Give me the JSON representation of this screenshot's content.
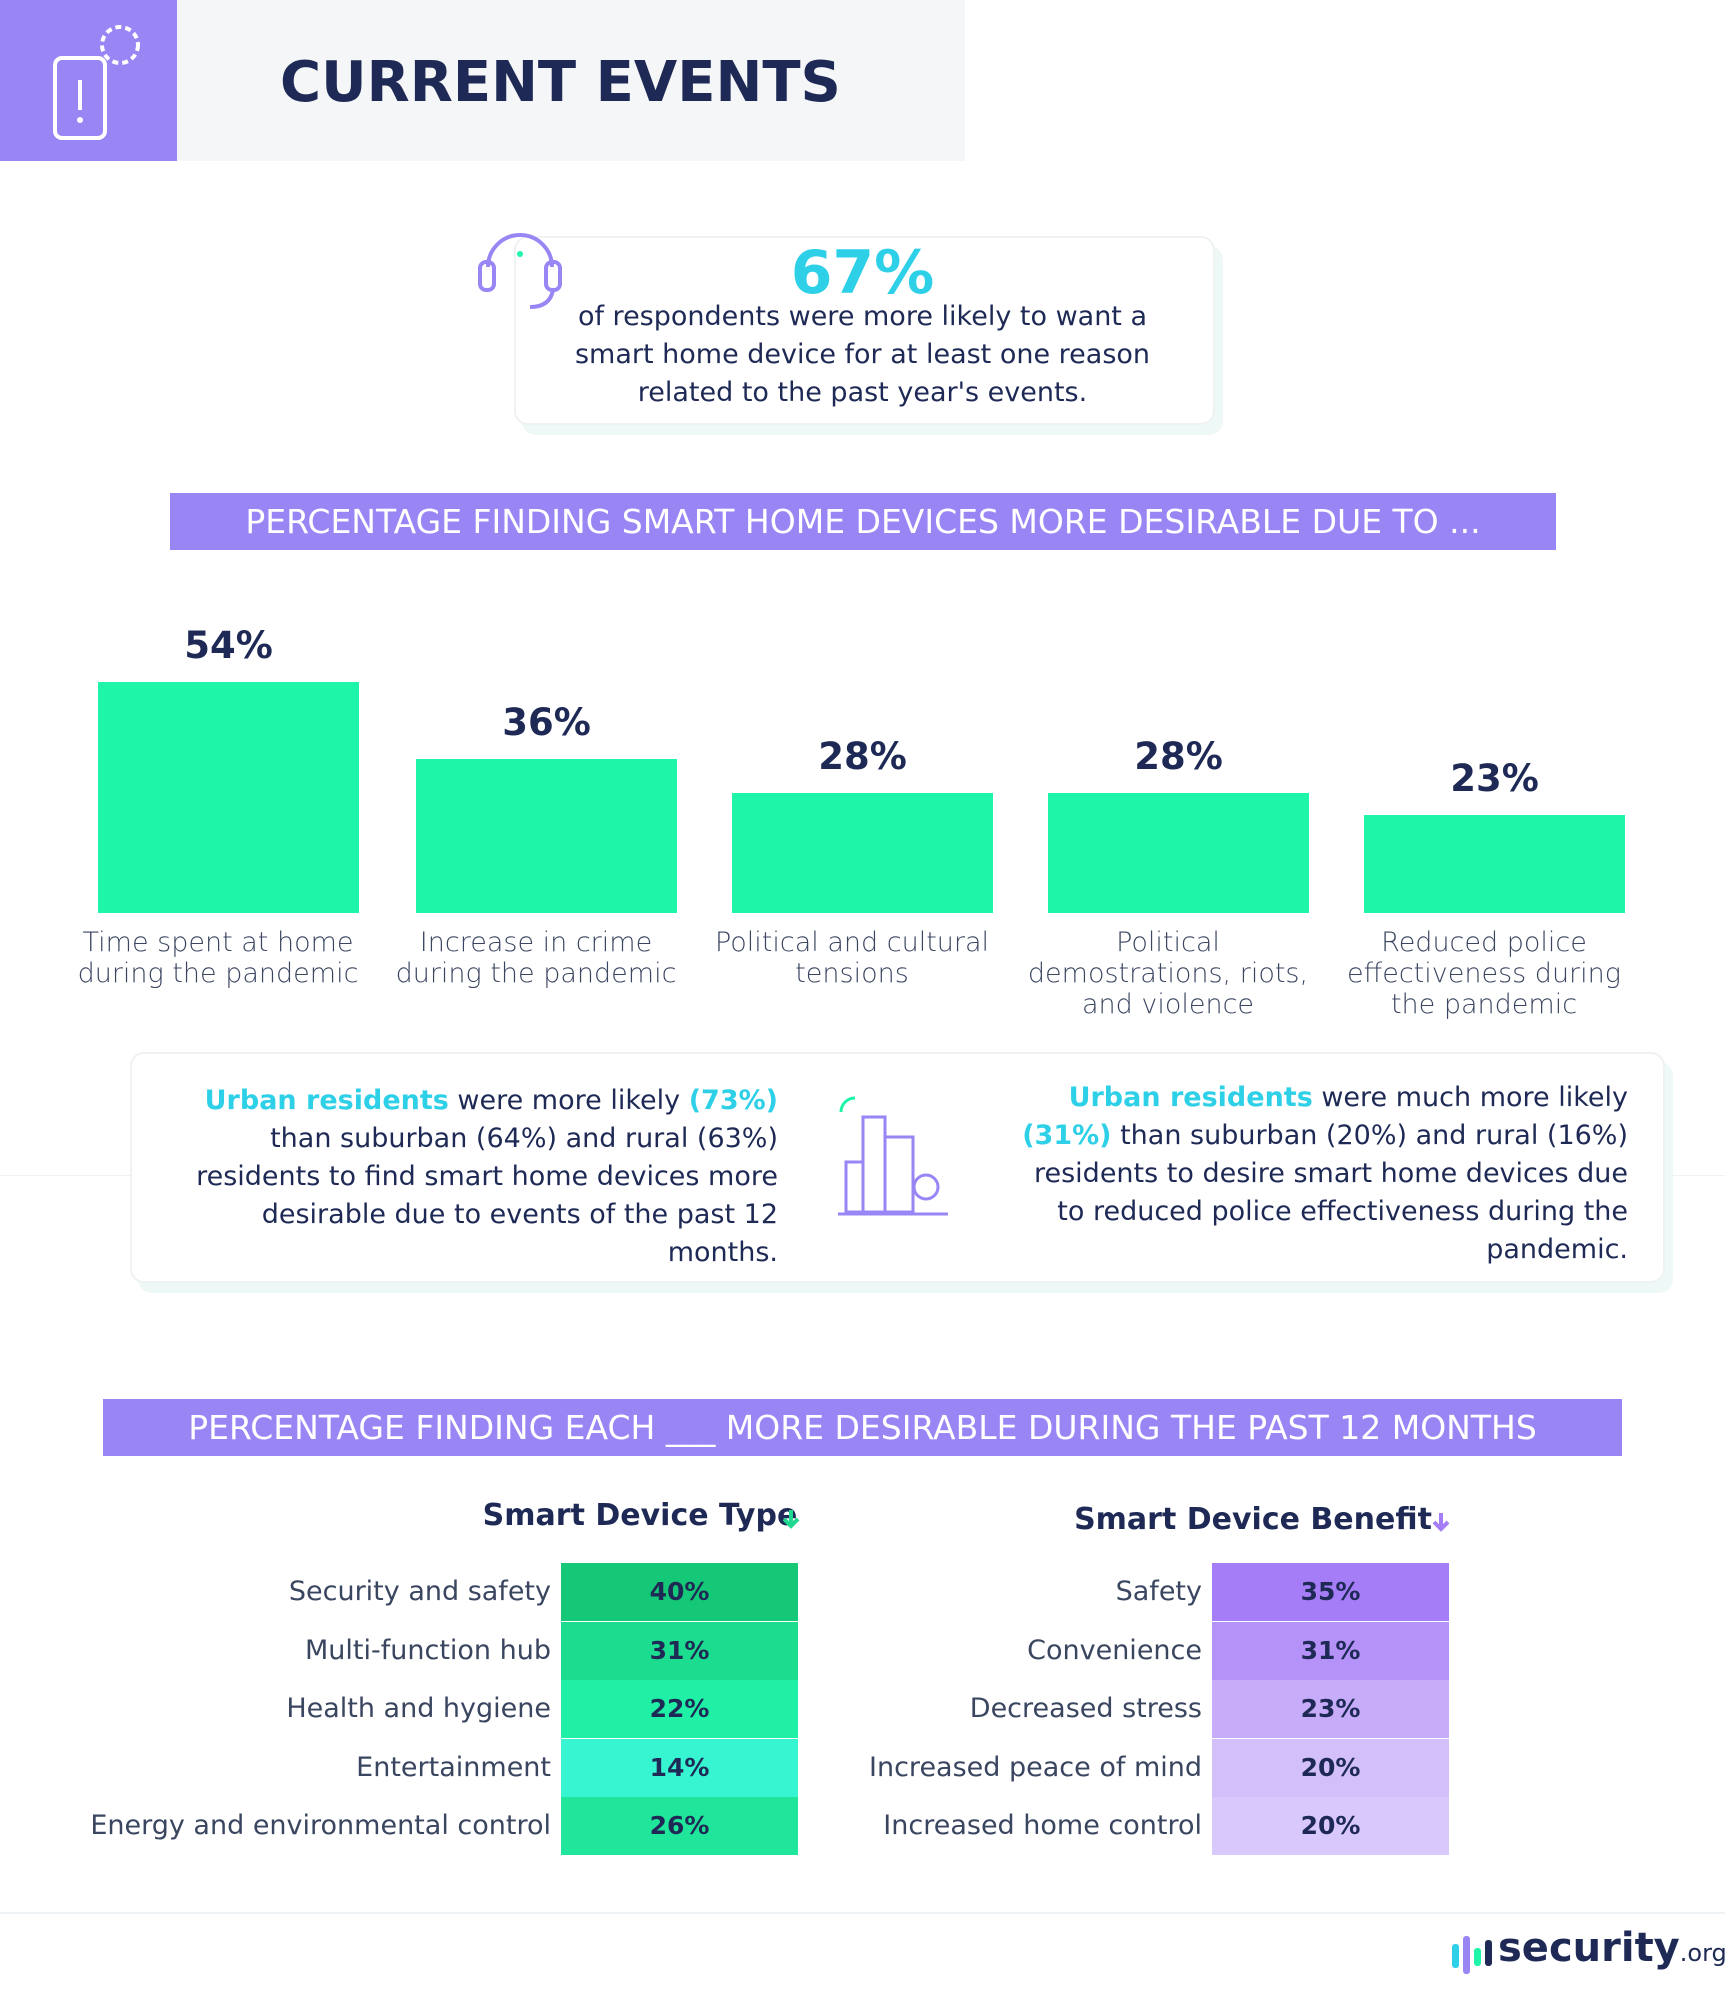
{
  "header": {
    "title": "CURRENT EVENTS"
  },
  "callout": {
    "stat": "67%",
    "lines": [
      "of respondents were more likely to want a",
      "smart home device for at least one reason",
      "related to the past year's events."
    ]
  },
  "chart_data": {
    "type": "bar",
    "title": "PERCENTAGE FINDING SMART HOME DEVICES MORE DESIRABLE DUE TO ...",
    "categories": [
      "Time spent at home during the pandemic",
      "Increase in crime during the pandemic",
      "Political and cultural tensions",
      "Political demostrations, riots, and violence",
      "Reduced police effectiveness during the pandemic"
    ],
    "values": [
      54,
      36,
      28,
      28,
      23
    ],
    "value_labels": [
      "54%",
      "36%",
      "28%",
      "28%",
      "23%"
    ],
    "color": "#1ef5a8"
  },
  "notes": [
    [
      "Urban residents",
      " were more likely ",
      "(73%)",
      " than suburban (64%) and rural (63%) residents to find smart home devices more desirable due to events of the past 12 months."
    ],
    [
      "Urban residents",
      " were much more likely ",
      "(31%)",
      " than suburban (20%) and rural (16%) residents to desire smart home devices due to reduced police effectiveness  during the pandemic."
    ]
  ],
  "tables": {
    "title": "PERCENTAGE FINDING EACH ___ MORE DESIRABLE DURING THE PAST 12 MONTHS",
    "groups": [
      {
        "heading": "Smart Device Type",
        "accent": "#1fd98f",
        "rows": [
          [
            "Security and safety",
            "40%"
          ],
          [
            "Multi-function hub",
            "31%"
          ],
          [
            "Health and hygiene",
            "22%"
          ],
          [
            "Entertainment",
            "14%"
          ],
          [
            "Energy and environmental control",
            "26%"
          ]
        ],
        "colors": [
          "#14c877",
          "#1bdc8f",
          "#1ff0a5",
          "#36f5d0",
          "#1fe69a"
        ]
      },
      {
        "heading": "Smart Device Benefit",
        "accent": "#a57ef7",
        "rows": [
          [
            "Safety",
            "35%"
          ],
          [
            "Convenience",
            "31%"
          ],
          [
            "Decreased stress",
            "23%"
          ],
          [
            "Increased peace of mind",
            "20%"
          ],
          [
            "Increased home control",
            "20%"
          ]
        ],
        "colors": [
          "#a57ef7",
          "#b592f8",
          "#c7acfa",
          "#d3c0fb",
          "#d9c8fb"
        ]
      }
    ]
  },
  "footer": {
    "brand": "security",
    "tld": ".org"
  }
}
